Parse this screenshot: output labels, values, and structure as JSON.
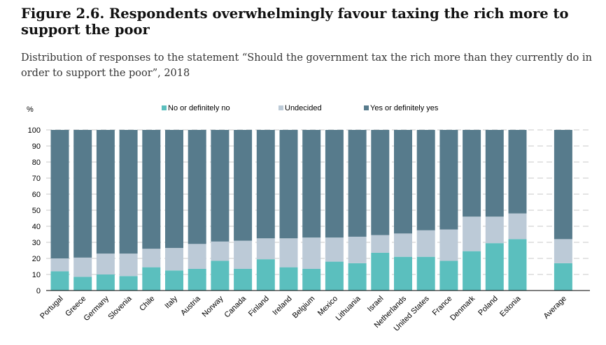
{
  "figure": {
    "title": "Figure 2.6. Respondents overwhelmingly favour taxing the rich more to support the poor",
    "subtitle": "Distribution of responses to the statement “Should the government tax the rich more than they currently do in order to support the poor”, 2018"
  },
  "chart_data": {
    "type": "bar",
    "stacked": true,
    "ylabel": "%",
    "ylim": [
      0,
      100
    ],
    "yticks": [
      0,
      10,
      20,
      30,
      40,
      50,
      60,
      70,
      80,
      90,
      100
    ],
    "grid": "horizontal dashed",
    "legend_position": "top",
    "categories": [
      "Portugal",
      "Greece",
      "Germany",
      "Slovenia",
      "Chile",
      "Italy",
      "Austria",
      "Norway",
      "Canada",
      "Finland",
      "Ireland",
      "Belgium",
      "Mexico",
      "Lithuania",
      "Israel",
      "Netherlands",
      "United States",
      "France",
      "Denmark",
      "Poland",
      "Estonia",
      "Average"
    ],
    "series": [
      {
        "name": "No or definitely no",
        "color": "#5bbfbe",
        "values": [
          12,
          8.5,
          10,
          9,
          14.5,
          12.5,
          13.5,
          18.5,
          13.5,
          19.5,
          14.5,
          13.5,
          18,
          17,
          23.5,
          21,
          21,
          18.5,
          24.5,
          29.5,
          32,
          17
        ]
      },
      {
        "name": "Undecided",
        "color": "#bccad7",
        "values": [
          8,
          12,
          13,
          14,
          11.5,
          14,
          15.5,
          12,
          17.5,
          13,
          18,
          19.5,
          15,
          16.5,
          11,
          14.5,
          16.5,
          19.5,
          21.5,
          16.5,
          16,
          15
        ]
      },
      {
        "name": "Yes or definitely yes",
        "color": "#577b8c",
        "values": [
          80,
          79.5,
          77,
          77,
          74,
          73.5,
          71,
          69.5,
          69,
          67.5,
          67.5,
          67,
          67,
          66.5,
          65.5,
          64.5,
          62.5,
          62,
          54,
          54,
          52,
          68
        ]
      }
    ]
  }
}
